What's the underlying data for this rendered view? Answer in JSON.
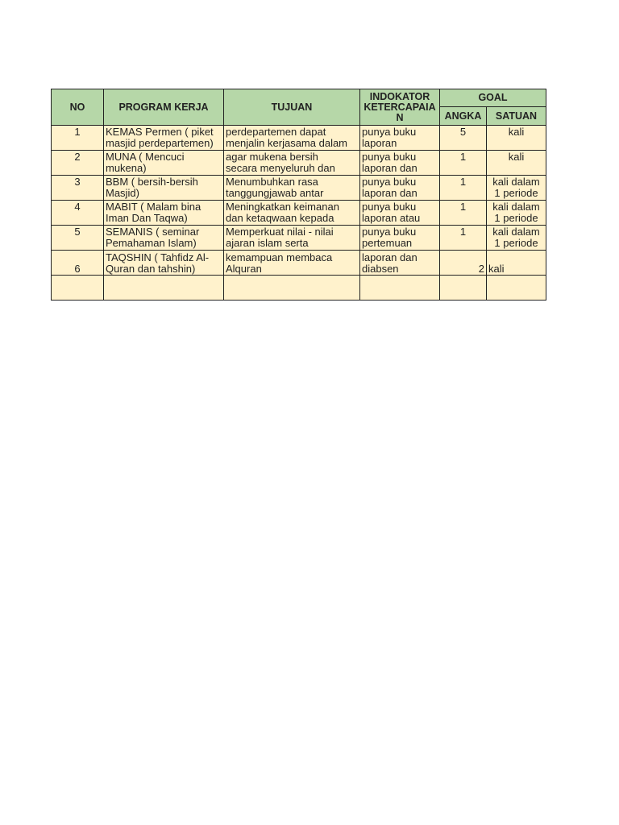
{
  "headers": {
    "no": "NO",
    "program": "PROGRAM KERJA",
    "tujuan": "TUJUAN",
    "indikator": "INDOKATOR KETERCAPAIA N",
    "goal": "GOAL",
    "angka": "ANGKA",
    "satuan": "SATUAN"
  },
  "rows": [
    {
      "no": "1",
      "program": [
        "KEMAS Permen  ( piket",
        "masjid perdepartemen)"
      ],
      "tujuan": [
        "perdepartemen dapat",
        "menjalin kerjasama dalam"
      ],
      "indikator": [
        "punya buku",
        "laporan"
      ],
      "angka": "5",
      "satuan": [
        "kali"
      ],
      "align": "top"
    },
    {
      "no": "2",
      "program": [
        "MUNA ( Mencuci",
        "mukena)"
      ],
      "tujuan": [
        "agar mukena bersih",
        "secara menyeluruh dan"
      ],
      "indikator": [
        "punya buku",
        "laporan dan"
      ],
      "angka": "1",
      "satuan": [
        "kali"
      ],
      "align": "top"
    },
    {
      "no": "3",
      "program": [
        "BBM ( bersih-bersih",
        "Masjid)"
      ],
      "tujuan": [
        "Menumbuhkan rasa",
        "tanggungjawab antar"
      ],
      "indikator": [
        "punya buku",
        "laporan dan"
      ],
      "angka": "1",
      "satuan": [
        "kali dalam",
        "1 periode"
      ],
      "align": "top"
    },
    {
      "no": "4",
      "program": [
        "MABIT ( Malam bina",
        "Iman Dan Taqwa)"
      ],
      "tujuan": [
        "Meningkatkan keimanan",
        "dan ketaqwaan kepada"
      ],
      "indikator": [
        "punya buku",
        "laporan atau"
      ],
      "angka": "1",
      "satuan": [
        "kali dalam",
        "1 periode"
      ],
      "align": "top"
    },
    {
      "no": "5",
      "program": [
        "SEMANIS ( seminar",
        "Pemahaman Islam)"
      ],
      "tujuan": [
        "Memperkuat nilai - nilai",
        "ajaran islam  serta"
      ],
      "indikator": [
        "punya buku",
        "pertemuan"
      ],
      "angka": "1",
      "satuan": [
        "kali dalam",
        "1 periode"
      ],
      "align": "top"
    },
    {
      "no": "6",
      "program": [
        "TAQSHIN ( Tahfidz Al-",
        "Quran dan tahshin)"
      ],
      "tujuan": [
        "kemampuan membaca",
        "Alquran"
      ],
      "indikator": [
        "laporan dan",
        "diabsen"
      ],
      "angka": "2",
      "satuan": [
        "kali"
      ],
      "align": "bottom"
    },
    {
      "no": "",
      "program": [],
      "tujuan": [],
      "indikator": [],
      "angka": "",
      "satuan": [],
      "align": "top"
    }
  ]
}
